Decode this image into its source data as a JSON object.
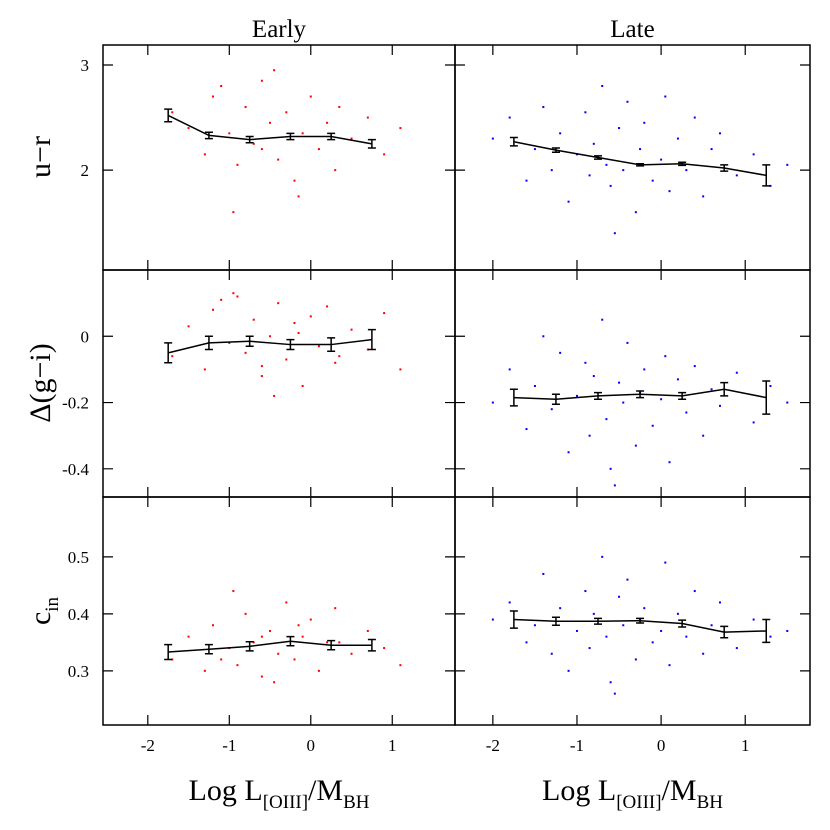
{
  "chart_data": [
    {
      "type": "scatter",
      "title": "Early",
      "ylabel": [
        "u−r"
      ],
      "xlim": [
        -2.55,
        1.77
      ],
      "ylim": [
        1.05,
        3.19
      ],
      "xticks": [
        -2,
        -1,
        0,
        1
      ],
      "yticks": [
        2,
        3
      ],
      "xtick_labels": false,
      "ytick_labels": true,
      "series": [
        {
          "color": "#ff0000",
          "x": [
            -1.7,
            -1.5,
            -1.3,
            -1.2,
            -1.0,
            -0.9,
            -0.8,
            -0.7,
            -0.6,
            -0.5,
            -0.4,
            -0.3,
            -0.2,
            -0.1,
            0.0,
            0.1,
            0.2,
            0.3,
            0.5,
            0.7,
            0.9,
            1.1,
            -0.95,
            -0.45,
            -0.15,
            0.35,
            -1.1,
            -0.6
          ],
          "values": [
            2.55,
            2.4,
            2.15,
            2.7,
            2.35,
            2.05,
            2.6,
            2.25,
            2.85,
            2.45,
            2.1,
            2.55,
            1.9,
            2.35,
            2.7,
            2.2,
            2.45,
            2.0,
            2.3,
            2.5,
            2.15,
            2.4,
            1.6,
            2.95,
            1.75,
            2.6,
            2.8,
            2.2
          ]
        }
      ],
      "median": {
        "color": "#000000",
        "x": [
          -1.75,
          -1.25,
          -0.75,
          -0.25,
          0.25,
          0.75
        ],
        "values": [
          2.52,
          2.33,
          2.29,
          2.32,
          2.32,
          2.25
        ],
        "errors": [
          0.06,
          0.03,
          0.03,
          0.03,
          0.03,
          0.04
        ]
      }
    },
    {
      "type": "scatter",
      "title": "Late",
      "xlim": [
        -2.45,
        1.77
      ],
      "ylim": [
        1.05,
        3.19
      ],
      "xticks": [
        -2,
        -1,
        0,
        1
      ],
      "yticks": [
        2,
        3
      ],
      "xtick_labels": false,
      "ytick_labels": false,
      "series": [
        {
          "color": "#0000ff",
          "x": [
            -2.0,
            -1.8,
            -1.6,
            -1.5,
            -1.4,
            -1.3,
            -1.2,
            -1.1,
            -1.0,
            -0.9,
            -0.85,
            -0.8,
            -0.7,
            -0.65,
            -0.6,
            -0.5,
            -0.45,
            -0.4,
            -0.3,
            -0.25,
            -0.2,
            -0.1,
            0.0,
            0.05,
            0.1,
            0.2,
            0.3,
            0.4,
            0.5,
            0.6,
            0.7,
            0.9,
            1.1,
            1.3,
            1.5,
            -0.55
          ],
          "values": [
            2.3,
            2.5,
            1.9,
            2.2,
            2.6,
            2.0,
            2.35,
            1.7,
            2.15,
            2.55,
            1.95,
            2.25,
            2.8,
            2.05,
            1.85,
            2.4,
            2.0,
            2.65,
            1.6,
            2.2,
            2.45,
            1.9,
            2.1,
            2.7,
            1.8,
            2.3,
            2.0,
            2.5,
            1.75,
            2.2,
            2.35,
            1.95,
            2.15,
            1.85,
            2.05,
            1.4
          ]
        }
      ],
      "median": {
        "color": "#000000",
        "x": [
          -1.75,
          -1.25,
          -0.75,
          -0.25,
          0.25,
          0.75,
          1.25
        ],
        "values": [
          2.27,
          2.19,
          2.12,
          2.05,
          2.06,
          2.02,
          1.95
        ],
        "errors": [
          0.04,
          0.02,
          0.015,
          0.01,
          0.015,
          0.03,
          0.1
        ]
      }
    },
    {
      "type": "scatter",
      "ylabel": [
        "Δ(g−i)"
      ],
      "xlim": [
        -2.55,
        1.77
      ],
      "ylim": [
        -0.485,
        0.2
      ],
      "xticks": [
        -2,
        -1,
        0,
        1
      ],
      "yticks": [
        -0.4,
        -0.2,
        0
      ],
      "xtick_labels": false,
      "ytick_labels": true,
      "series": [
        {
          "color": "#ff0000",
          "x": [
            -1.7,
            -1.5,
            -1.3,
            -1.2,
            -1.0,
            -0.9,
            -0.8,
            -0.7,
            -0.6,
            -0.5,
            -0.4,
            -0.3,
            -0.2,
            -0.1,
            0.0,
            0.1,
            0.2,
            0.3,
            0.5,
            0.7,
            0.9,
            1.1,
            -0.95,
            -0.45,
            -0.15,
            0.35,
            -1.1,
            -0.6
          ],
          "values": [
            -0.06,
            0.03,
            -0.1,
            0.08,
            -0.02,
            0.12,
            -0.05,
            0.05,
            -0.12,
            0.0,
            0.1,
            -0.07,
            0.04,
            -0.15,
            0.06,
            -0.03,
            0.09,
            -0.08,
            0.02,
            -0.04,
            0.07,
            -0.1,
            0.13,
            -0.18,
            0.01,
            -0.06,
            0.11,
            -0.09
          ]
        }
      ],
      "median": {
        "color": "#000000",
        "x": [
          -1.75,
          -1.25,
          -0.75,
          -0.25,
          0.25,
          0.75
        ],
        "values": [
          -0.05,
          -0.02,
          -0.015,
          -0.025,
          -0.025,
          -0.01
        ],
        "errors": [
          0.03,
          0.02,
          0.015,
          0.015,
          0.02,
          0.03
        ]
      }
    },
    {
      "type": "scatter",
      "xlim": [
        -2.45,
        1.77
      ],
      "ylim": [
        -0.485,
        0.2
      ],
      "xticks": [
        -2,
        -1,
        0,
        1
      ],
      "yticks": [
        -0.4,
        -0.2,
        0
      ],
      "xtick_labels": false,
      "ytick_labels": false,
      "series": [
        {
          "color": "#0000ff",
          "x": [
            -2.0,
            -1.8,
            -1.6,
            -1.5,
            -1.4,
            -1.3,
            -1.2,
            -1.1,
            -1.0,
            -0.9,
            -0.85,
            -0.8,
            -0.7,
            -0.65,
            -0.6,
            -0.5,
            -0.45,
            -0.4,
            -0.3,
            -0.25,
            -0.2,
            -0.1,
            0.0,
            0.05,
            0.1,
            0.2,
            0.3,
            0.4,
            0.5,
            0.6,
            0.7,
            0.9,
            1.1,
            1.3,
            1.5,
            -0.55
          ],
          "values": [
            -0.2,
            -0.1,
            -0.28,
            -0.15,
            0.0,
            -0.22,
            -0.05,
            -0.35,
            -0.18,
            -0.08,
            -0.3,
            -0.12,
            0.05,
            -0.25,
            -0.4,
            -0.14,
            -0.2,
            -0.02,
            -0.33,
            -0.17,
            -0.1,
            -0.27,
            -0.19,
            -0.06,
            -0.38,
            -0.13,
            -0.23,
            -0.09,
            -0.3,
            -0.16,
            -0.21,
            -0.11,
            -0.26,
            -0.15,
            -0.2,
            -0.45
          ]
        }
      ],
      "median": {
        "color": "#000000",
        "x": [
          -1.75,
          -1.25,
          -0.75,
          -0.25,
          0.25,
          0.75,
          1.25
        ],
        "values": [
          -0.185,
          -0.19,
          -0.18,
          -0.175,
          -0.18,
          -0.16,
          -0.185
        ],
        "errors": [
          0.025,
          0.015,
          0.01,
          0.01,
          0.01,
          0.02,
          0.05
        ]
      }
    },
    {
      "type": "scatter",
      "ylabel": [
        "c",
        "in"
      ],
      "xlabel": [
        "Log L",
        "[OIII]",
        "/M",
        "BH"
      ],
      "xlim": [
        -2.55,
        1.77
      ],
      "ylim": [
        0.205,
        0.605
      ],
      "xticks": [
        -2,
        -1,
        0,
        1
      ],
      "yticks": [
        0.3,
        0.4,
        0.5
      ],
      "xtick_labels": true,
      "ytick_labels": true,
      "series": [
        {
          "color": "#ff0000",
          "x": [
            -1.7,
            -1.5,
            -1.3,
            -1.2,
            -1.0,
            -0.9,
            -0.8,
            -0.7,
            -0.6,
            -0.5,
            -0.4,
            -0.3,
            -0.2,
            -0.1,
            0.0,
            0.1,
            0.2,
            0.3,
            0.5,
            0.7,
            0.9,
            1.1,
            -0.95,
            -0.45,
            -0.15,
            0.35,
            -1.1,
            -0.6
          ],
          "values": [
            0.32,
            0.36,
            0.3,
            0.38,
            0.34,
            0.31,
            0.4,
            0.35,
            0.29,
            0.37,
            0.33,
            0.42,
            0.32,
            0.36,
            0.39,
            0.3,
            0.35,
            0.41,
            0.33,
            0.37,
            0.34,
            0.31,
            0.44,
            0.28,
            0.38,
            0.35,
            0.32,
            0.36
          ]
        }
      ],
      "median": {
        "color": "#000000",
        "x": [
          -1.75,
          -1.25,
          -0.75,
          -0.25,
          0.25,
          0.75
        ],
        "values": [
          0.333,
          0.338,
          0.343,
          0.352,
          0.345,
          0.345
        ],
        "errors": [
          0.013,
          0.008,
          0.008,
          0.008,
          0.008,
          0.01
        ]
      }
    },
    {
      "type": "scatter",
      "xlabel": [
        "Log L",
        "[OIII]",
        "/M",
        "BH"
      ],
      "xlim": [
        -2.45,
        1.77
      ],
      "ylim": [
        0.205,
        0.605
      ],
      "xticks": [
        -2,
        -1,
        0,
        1
      ],
      "yticks": [
        0.3,
        0.4,
        0.5
      ],
      "xtick_labels": true,
      "ytick_labels": false,
      "series": [
        {
          "color": "#0000ff",
          "x": [
            -2.0,
            -1.8,
            -1.6,
            -1.5,
            -1.4,
            -1.3,
            -1.2,
            -1.1,
            -1.0,
            -0.9,
            -0.85,
            -0.8,
            -0.7,
            -0.65,
            -0.6,
            -0.5,
            -0.45,
            -0.4,
            -0.3,
            -0.25,
            -0.2,
            -0.1,
            0.0,
            0.05,
            0.1,
            0.2,
            0.3,
            0.4,
            0.5,
            0.6,
            0.7,
            0.9,
            1.1,
            1.3,
            1.5,
            -0.55
          ],
          "values": [
            0.39,
            0.42,
            0.35,
            0.38,
            0.47,
            0.33,
            0.41,
            0.3,
            0.37,
            0.44,
            0.34,
            0.4,
            0.5,
            0.36,
            0.28,
            0.43,
            0.38,
            0.46,
            0.32,
            0.39,
            0.41,
            0.35,
            0.37,
            0.49,
            0.31,
            0.4,
            0.36,
            0.44,
            0.33,
            0.38,
            0.42,
            0.34,
            0.39,
            0.36,
            0.37,
            0.26
          ]
        }
      ],
      "median": {
        "color": "#000000",
        "x": [
          -1.75,
          -1.25,
          -0.75,
          -0.25,
          0.25,
          0.75,
          1.25
        ],
        "values": [
          0.39,
          0.387,
          0.387,
          0.388,
          0.383,
          0.368,
          0.37
        ],
        "errors": [
          0.015,
          0.007,
          0.005,
          0.004,
          0.006,
          0.01,
          0.02
        ]
      }
    }
  ]
}
